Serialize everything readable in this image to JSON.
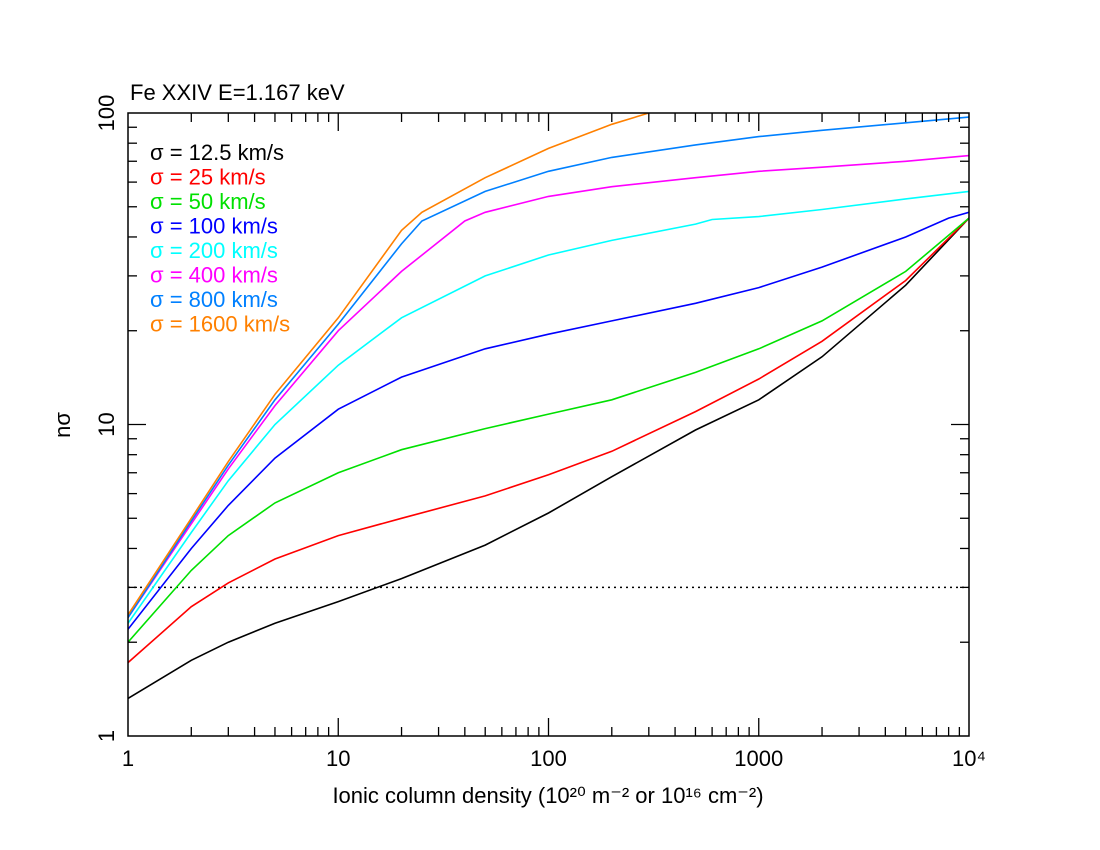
{
  "chart_data": {
    "type": "line",
    "title": "Fe XXIV E=1.167 keV",
    "xlabel": "Ionic column density (10²⁰ m⁻² or 10¹⁶ cm⁻²)",
    "ylabel": "nσ",
    "xscale": "log",
    "yscale": "log",
    "xlim": [
      1,
      10000
    ],
    "ylim": [
      1,
      100
    ],
    "xticks": [
      {
        "v": 1,
        "label": "1"
      },
      {
        "v": 10,
        "label": "10"
      },
      {
        "v": 100,
        "label": "100"
      },
      {
        "v": 1000,
        "label": "1000"
      },
      {
        "v": 10000,
        "label": "10⁴"
      }
    ],
    "yticks": [
      {
        "v": 1,
        "label": "1"
      },
      {
        "v": 10,
        "label": "10"
      },
      {
        "v": 100,
        "label": "100"
      }
    ],
    "grid": false,
    "legend_placement": "top-left",
    "reference_line": {
      "y": 3,
      "style": "dotted",
      "color": "#000000"
    },
    "series": [
      {
        "name": "σ = 12.5 km/s",
        "color": "#000000",
        "x": [
          1,
          2,
          3,
          5,
          10,
          20,
          50,
          100,
          200,
          500,
          1000,
          2000,
          5000,
          10000
        ],
        "y": [
          1.32,
          1.75,
          2.0,
          2.3,
          2.7,
          3.2,
          4.1,
          5.2,
          6.8,
          9.6,
          12.0,
          16.5,
          28,
          46
        ]
      },
      {
        "name": "σ = 25 km/s",
        "color": "#ff0000",
        "x": [
          1,
          2,
          3,
          5,
          10,
          20,
          50,
          100,
          200,
          500,
          1000,
          2000,
          5000,
          10000
        ],
        "y": [
          1.72,
          2.6,
          3.1,
          3.7,
          4.4,
          5.0,
          5.9,
          6.9,
          8.2,
          11,
          14,
          18.5,
          29,
          46
        ]
      },
      {
        "name": "σ = 50 km/s",
        "color": "#00e000",
        "x": [
          1,
          2,
          3,
          5,
          10,
          20,
          50,
          100,
          200,
          500,
          1000,
          2000,
          5000,
          10000
        ],
        "y": [
          2.0,
          3.4,
          4.4,
          5.6,
          7.0,
          8.3,
          9.7,
          10.8,
          12.0,
          14.7,
          17.5,
          21.5,
          31,
          46
        ]
      },
      {
        "name": "σ = 100 km/s",
        "color": "#0000ff",
        "x": [
          1,
          2,
          3,
          5,
          10,
          20,
          50,
          100,
          200,
          500,
          1000,
          2000,
          5000,
          8000,
          10000
        ],
        "y": [
          2.2,
          4.0,
          5.5,
          7.8,
          11.2,
          14.2,
          17.5,
          19.5,
          21.5,
          24.5,
          27.5,
          32,
          40,
          46,
          48
        ]
      },
      {
        "name": "σ = 200 km/s",
        "color": "#00ffff",
        "x": [
          1,
          2,
          3,
          5,
          10,
          20,
          50,
          100,
          200,
          500,
          600,
          1000,
          2000,
          5000,
          10000
        ],
        "y": [
          2.3,
          4.5,
          6.6,
          10,
          15.5,
          22,
          30,
          35,
          39,
          44,
          45.5,
          46.5,
          49,
          53,
          56
        ]
      },
      {
        "name": "σ = 400 km/s",
        "color": "#ff00ff",
        "x": [
          1,
          2,
          3,
          5,
          10,
          20,
          40,
          50,
          100,
          200,
          500,
          1000,
          2000,
          5000,
          10000
        ],
        "y": [
          2.4,
          4.8,
          7.2,
          11.5,
          20,
          31,
          45,
          48,
          54,
          58,
          62,
          65,
          67,
          70,
          73
        ]
      },
      {
        "name": "σ = 800 km/s",
        "color": "#0080ff",
        "x": [
          1,
          2,
          3,
          5,
          10,
          20,
          25,
          50,
          100,
          200,
          500,
          1000,
          2000,
          5000,
          10000
        ],
        "y": [
          2.4,
          4.9,
          7.4,
          12,
          21,
          38,
          45,
          56,
          65,
          72,
          79,
          84,
          88,
          93,
          97
        ]
      },
      {
        "name": "σ = 1600 km/s",
        "color": "#ff8000",
        "x": [
          1,
          2,
          3,
          5,
          10,
          20,
          25,
          50,
          100,
          200,
          300
        ],
        "y": [
          2.45,
          5.0,
          7.6,
          12.5,
          22,
          42,
          48,
          62,
          77,
          92,
          100
        ]
      }
    ]
  }
}
